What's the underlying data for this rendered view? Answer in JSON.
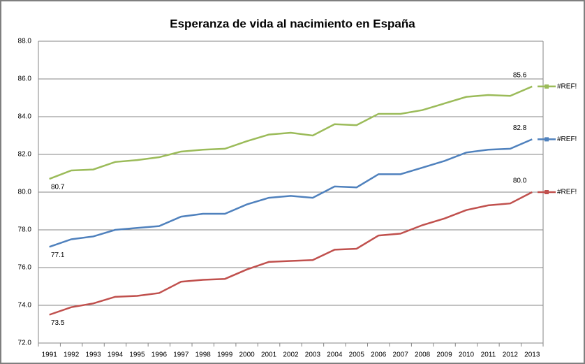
{
  "chart_data": {
    "type": "line",
    "title": "Esperanza de vida al nacimiento en España",
    "categories": [
      "1991",
      "1992",
      "1993",
      "1994",
      "1995",
      "1996",
      "1997",
      "1998",
      "1999",
      "2000",
      "2001",
      "2002",
      "2003",
      "2004",
      "2005",
      "2006",
      "2007",
      "2008",
      "2009",
      "2010",
      "2011",
      "2012",
      "2013"
    ],
    "series": [
      {
        "name": "#REF!",
        "color": "#9bbb59",
        "values": [
          80.7,
          81.15,
          81.2,
          81.6,
          81.7,
          81.85,
          82.15,
          82.25,
          82.3,
          82.7,
          83.05,
          83.15,
          83.0,
          83.6,
          83.55,
          84.15,
          84.15,
          84.35,
          84.7,
          85.05,
          85.15,
          85.1,
          85.6
        ],
        "value_labels": [
          "80.7",
          null,
          null,
          null,
          null,
          null,
          null,
          null,
          null,
          null,
          null,
          null,
          null,
          null,
          null,
          null,
          null,
          null,
          null,
          null,
          null,
          null,
          "85.6"
        ]
      },
      {
        "name": "#REF!",
        "color": "#4f81bd",
        "values": [
          77.1,
          77.5,
          77.65,
          78.0,
          78.1,
          78.2,
          78.7,
          78.85,
          78.85,
          79.35,
          79.7,
          79.8,
          79.7,
          80.3,
          80.25,
          80.95,
          80.95,
          81.3,
          81.65,
          82.1,
          82.25,
          82.3,
          82.8
        ],
        "value_labels": [
          "77.1",
          null,
          null,
          null,
          null,
          null,
          null,
          null,
          null,
          null,
          null,
          null,
          null,
          null,
          null,
          null,
          null,
          null,
          null,
          null,
          null,
          null,
          "82.8"
        ]
      },
      {
        "name": "#REF!",
        "color": "#c0504d",
        "values": [
          73.5,
          73.9,
          74.1,
          74.45,
          74.5,
          74.65,
          75.25,
          75.35,
          75.4,
          75.9,
          76.3,
          76.35,
          76.4,
          76.95,
          77.0,
          77.7,
          77.8,
          78.25,
          78.6,
          79.05,
          79.3,
          79.4,
          80.0
        ],
        "value_labels": [
          "73.5",
          null,
          null,
          null,
          null,
          null,
          null,
          null,
          null,
          null,
          null,
          null,
          null,
          null,
          null,
          null,
          null,
          null,
          null,
          null,
          null,
          null,
          "80.0"
        ]
      }
    ],
    "ylim": [
      72,
      88
    ],
    "yticks": [
      {
        "value": 72,
        "label": "72.0"
      },
      {
        "value": 74,
        "label": "74.0"
      },
      {
        "value": 76,
        "label": "76.0"
      },
      {
        "value": 78,
        "label": "78.0"
      },
      {
        "value": 80,
        "label": "80.0"
      },
      {
        "value": 82,
        "label": "82.0"
      },
      {
        "value": 84,
        "label": "84.0"
      },
      {
        "value": 86,
        "label": "86.0"
      },
      {
        "value": 88,
        "label": "88.0"
      }
    ],
    "grid": true,
    "legend": "right"
  }
}
